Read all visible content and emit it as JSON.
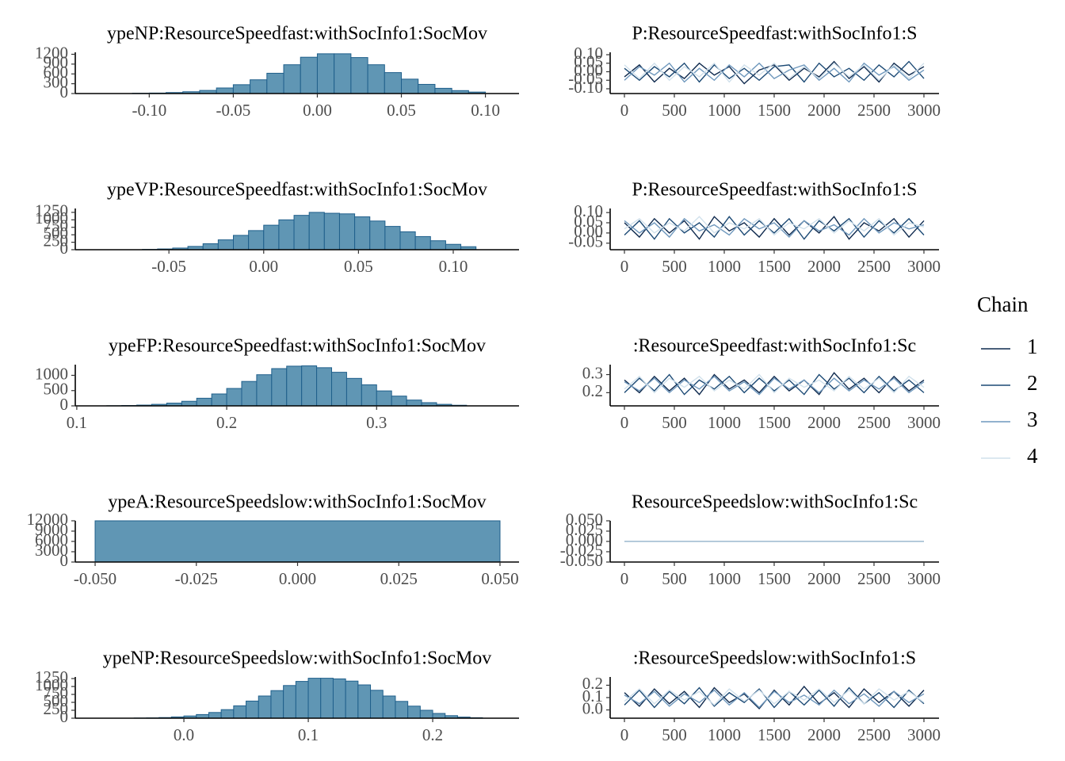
{
  "chart_data": [
    {
      "type": "histogram",
      "title": "ypeNP:ResourceSpeedfast:withSocInfo1:SocMov",
      "color": "#6096b4",
      "edge_color": "#1f5f8b",
      "bins": [
        -0.11,
        -0.1,
        -0.09,
        -0.08,
        -0.07,
        -0.06,
        -0.05,
        -0.04,
        -0.03,
        -0.02,
        -0.01,
        0,
        0.01,
        0.02,
        0.03,
        0.04,
        0.05,
        0.06,
        0.07,
        0.08,
        0.09,
        0.1
      ],
      "values": [
        8,
        15,
        30,
        55,
        95,
        170,
        270,
        420,
        620,
        880,
        1110,
        1215,
        1215,
        1100,
        880,
        640,
        440,
        280,
        160,
        90,
        45
      ],
      "xlim": [
        -0.144,
        0.12
      ],
      "xticks": [
        {
          "value": -0.1,
          "label": "-0.10"
        },
        {
          "value": -0.05,
          "label": "-0.05"
        },
        {
          "value": 0,
          "label": "0.00"
        },
        {
          "value": 0.05,
          "label": "0.05"
        },
        {
          "value": 0.1,
          "label": "0.10"
        }
      ],
      "ylim": [
        0,
        1260
      ],
      "yticks": [
        0,
        300,
        600,
        900,
        1200
      ]
    },
    {
      "type": "line",
      "title": "P:ResourceSpeedfast:withSocInfo1:S",
      "legend_title": "Chain",
      "legend": "right",
      "x": [
        0,
        150,
        300,
        450,
        600,
        750,
        900,
        1050,
        1200,
        1350,
        1500,
        1650,
        1800,
        1950,
        2100,
        2250,
        2400,
        2550,
        2700,
        2850,
        3000
      ],
      "series": [
        {
          "name": "1",
          "color": "#0f2a4e",
          "values": [
            -0.03,
            0.04,
            -0.06,
            0.02,
            -0.04,
            0.05,
            -0.02,
            0.03,
            -0.07,
            0.01,
            0.04,
            -0.05,
            0.02,
            -0.03,
            0.06,
            -0.04,
            0.03,
            -0.06,
            0.05,
            -0.02,
            0.03
          ]
        },
        {
          "name": "2",
          "color": "#1c4a75",
          "values": [
            0.02,
            -0.05,
            0.03,
            -0.03,
            0.05,
            -0.06,
            0.04,
            -0.04,
            0.02,
            -0.05,
            0.03,
            0.04,
            -0.06,
            0.05,
            -0.03,
            0.02,
            -0.05,
            0.04,
            -0.03,
            0.06,
            -0.04
          ]
        },
        {
          "name": "3",
          "color": "#6f98bd",
          "values": [
            -0.05,
            0.03,
            -0.02,
            0.05,
            -0.06,
            0.02,
            -0.05,
            0.04,
            -0.03,
            0.05,
            -0.04,
            0.01,
            0.04,
            -0.05,
            0.02,
            -0.06,
            0.05,
            -0.02,
            0.03,
            -0.05,
            0.01
          ]
        },
        {
          "name": "4",
          "color": "#d1e1ec",
          "values": [
            0.04,
            -0.04,
            0.05,
            -0.05,
            0.03,
            -0.03,
            0.05,
            -0.06,
            0.04,
            -0.02,
            0.05,
            -0.04,
            0.03,
            -0.04,
            0.05,
            -0.03,
            0.04,
            -0.05,
            0.04,
            -0.04,
            0.05
          ]
        }
      ],
      "xlim": [
        -143,
        3151
      ],
      "xticks": [
        0,
        500,
        1000,
        1500,
        2000,
        2500,
        3000
      ],
      "ylim": [
        -0.128,
        0.114
      ],
      "yticks": [
        {
          "value": -0.1,
          "label": "-0.10"
        },
        {
          "value": -0.05,
          "label": "-0.05"
        },
        {
          "value": 0,
          "label": "0.00"
        },
        {
          "value": 0.05,
          "label": "0.05"
        },
        {
          "value": 0.1,
          "label": "0.10"
        }
      ]
    },
    {
      "type": "histogram",
      "title": "ypeVP:ResourceSpeedfast:withSocInfo1:SocMov",
      "color": "#6096b4",
      "edge_color": "#1f5f8b",
      "bins": [
        -0.064,
        -0.056,
        -0.048,
        -0.04,
        -0.032,
        -0.024,
        -0.016,
        -0.008,
        0,
        0.008,
        0.016,
        0.024,
        0.032,
        0.04,
        0.048,
        0.056,
        0.064,
        0.072,
        0.08,
        0.088,
        0.096,
        0.104,
        0.112
      ],
      "values": [
        10,
        25,
        55,
        110,
        200,
        330,
        480,
        640,
        820,
        1000,
        1150,
        1250,
        1220,
        1200,
        1100,
        960,
        780,
        600,
        440,
        300,
        180,
        100
      ],
      "xlim": [
        -0.0994,
        0.1347
      ],
      "xticks": [
        {
          "value": -0.05,
          "label": "-0.05"
        },
        {
          "value": 0,
          "label": "0.00"
        },
        {
          "value": 0.05,
          "label": "0.05"
        },
        {
          "value": 0.1,
          "label": "0.10"
        }
      ],
      "ylim": [
        0,
        1380
      ],
      "yticks": [
        0,
        250,
        500,
        750,
        1000,
        1250
      ]
    },
    {
      "type": "line",
      "title": "P:ResourceSpeedfast:withSocInfo1:S",
      "x": [
        0,
        150,
        300,
        450,
        600,
        750,
        900,
        1050,
        1200,
        1350,
        1500,
        1650,
        1800,
        1950,
        2100,
        2250,
        2400,
        2550,
        2700,
        2850,
        3000
      ],
      "series": [
        {
          "color": "#0f2a4e",
          "values": [
            0.05,
            -0.02,
            0.07,
            0,
            0.06,
            -0.03,
            0.08,
            0.01,
            0.05,
            -0.02,
            0.07,
            -0.01,
            0.06,
            0,
            0.08,
            -0.03,
            0.05,
            0.01,
            0.07,
            -0.02,
            0.06
          ]
        },
        {
          "color": "#1c4a75",
          "values": [
            -0.01,
            0.06,
            -0.03,
            0.07,
            0,
            0.05,
            -0.02,
            0.08,
            -0.01,
            0.06,
            0,
            0.07,
            -0.03,
            0.06,
            0.01,
            0.07,
            -0.02,
            0.06,
            0,
            0.07,
            -0.01
          ]
        },
        {
          "color": "#6f98bd",
          "values": [
            0.06,
            0,
            0.05,
            -0.02,
            0.07,
            0.01,
            0.04,
            -0.01,
            0.07,
            0.02,
            0.05,
            -0.02,
            0.06,
            0.01,
            0.04,
            -0.01,
            0.07,
            0,
            0.05,
            0.02,
            0.04
          ]
        },
        {
          "color": "#d1e1ec",
          "values": [
            0.02,
            0.07,
            0,
            0.05,
            0.01,
            0.08,
            0,
            0.05,
            0.02,
            0.07,
            -0.01,
            0.05,
            0.02,
            0.07,
            0,
            0.06,
            0.01,
            0.07,
            -0.01,
            0.05,
            0.03
          ]
        }
      ],
      "xlim": [
        -143,
        3151
      ],
      "xticks": [
        0,
        500,
        1000,
        1500,
        2000,
        2500,
        3000
      ],
      "ylim": [
        -0.082,
        0.12
      ],
      "yticks": [
        {
          "value": -0.05,
          "label": "-0.05"
        },
        {
          "value": 0,
          "label": "0.00"
        },
        {
          "value": 0.05,
          "label": "0.05"
        },
        {
          "value": 0.1,
          "label": "0.10"
        }
      ]
    },
    {
      "type": "histogram",
      "title": "ypeFP:ResourceSpeedfast:withSocInfo1:SocMov",
      "color": "#6096b4",
      "edge_color": "#1f5f8b",
      "bins": [
        0.12,
        0.13,
        0.14,
        0.15,
        0.16,
        0.17,
        0.18,
        0.19,
        0.2,
        0.21,
        0.22,
        0.23,
        0.24,
        0.25,
        0.26,
        0.27,
        0.28,
        0.29,
        0.3,
        0.31,
        0.32,
        0.33,
        0.34,
        0.35,
        0.36
      ],
      "values": [
        5,
        12,
        25,
        50,
        90,
        150,
        250,
        390,
        570,
        800,
        1020,
        1220,
        1300,
        1310,
        1250,
        1100,
        900,
        690,
        490,
        320,
        190,
        105,
        50,
        20
      ],
      "xlim": [
        0.099,
        0.395
      ],
      "xticks": [
        0.1,
        0.2,
        0.3
      ],
      "ylim": [
        0,
        1350
      ],
      "yticks": [
        0,
        500,
        1000
      ]
    },
    {
      "type": "line",
      "title": ":ResourceSpeedfast:withSocInfo1:Sc",
      "x": [
        0,
        150,
        300,
        450,
        600,
        750,
        900,
        1050,
        1200,
        1350,
        1500,
        1650,
        1800,
        1950,
        2100,
        2250,
        2400,
        2550,
        2700,
        2850,
        3000
      ],
      "series": [
        {
          "color": "#0f2a4e",
          "values": [
            0.27,
            0.2,
            0.29,
            0.21,
            0.28,
            0.19,
            0.3,
            0.22,
            0.27,
            0.2,
            0.29,
            0.21,
            0.27,
            0.19,
            0.31,
            0.22,
            0.28,
            0.2,
            0.29,
            0.21,
            0.27
          ]
        },
        {
          "color": "#1c4a75",
          "values": [
            0.2,
            0.28,
            0.21,
            0.3,
            0.19,
            0.27,
            0.22,
            0.29,
            0.2,
            0.28,
            0.21,
            0.27,
            0.19,
            0.3,
            0.22,
            0.28,
            0.2,
            0.29,
            0.21,
            0.27,
            0.2
          ]
        },
        {
          "color": "#6f98bd",
          "values": [
            0.26,
            0.21,
            0.28,
            0.2,
            0.27,
            0.22,
            0.29,
            0.21,
            0.26,
            0.19,
            0.28,
            0.22,
            0.27,
            0.2,
            0.28,
            0.21,
            0.27,
            0.22,
            0.28,
            0.2,
            0.26
          ]
        },
        {
          "color": "#d1e1ec",
          "values": [
            0.22,
            0.29,
            0.2,
            0.28,
            0.23,
            0.29,
            0.21,
            0.27,
            0.22,
            0.3,
            0.2,
            0.28,
            0.23,
            0.27,
            0.21,
            0.29,
            0.22,
            0.28,
            0.2,
            0.29,
            0.23
          ]
        }
      ],
      "xlim": [
        -143,
        3151
      ],
      "xticks": [
        0,
        500,
        1000,
        1500,
        2000,
        2500,
        3000
      ],
      "ylim": [
        0.127,
        0.355
      ],
      "yticks": [
        0.2,
        0.3
      ]
    },
    {
      "type": "histogram",
      "title": "ypeA:ResourceSpeedslow:withSocInfo1:SocMov",
      "color": "#6096b4",
      "edge_color": "#1f5f8b",
      "bins": [
        -0.05,
        0.05
      ],
      "values": [
        12000
      ],
      "xlim": [
        -0.0549,
        0.0547
      ],
      "xticks": [
        {
          "value": -0.05,
          "label": "-0.050"
        },
        {
          "value": -0.025,
          "label": "-0.025"
        },
        {
          "value": 0,
          "label": "0.000"
        },
        {
          "value": 0.025,
          "label": "0.025"
        },
        {
          "value": 0.05,
          "label": "0.050"
        }
      ],
      "ylim": [
        0,
        12000
      ],
      "yticks": [
        0,
        3000,
        6000,
        9000,
        12000
      ]
    },
    {
      "type": "line",
      "title": "ResourceSpeedslow:withSocInfo1:Sc",
      "x": [
        0,
        150,
        300,
        450,
        600,
        750,
        900,
        1050,
        1200,
        1350,
        1500,
        1650,
        1800,
        1950,
        2100,
        2250,
        2400,
        2550,
        2700,
        2850,
        3000
      ],
      "series": [
        {
          "color": "#0f2a4e",
          "values": [
            0,
            0,
            0,
            0,
            0,
            0,
            0,
            0,
            0,
            0,
            0,
            0,
            0,
            0,
            0,
            0,
            0,
            0,
            0,
            0,
            0
          ]
        },
        {
          "color": "#1c4a75",
          "values": [
            0,
            0,
            0,
            0,
            0,
            0,
            0,
            0,
            0,
            0,
            0,
            0,
            0,
            0,
            0,
            0,
            0,
            0,
            0,
            0,
            0
          ]
        },
        {
          "color": "#6f98bd",
          "values": [
            0,
            0,
            0,
            0,
            0,
            0,
            0,
            0,
            0,
            0,
            0,
            0,
            0,
            0,
            0,
            0,
            0,
            0,
            0,
            0,
            0
          ]
        },
        {
          "color": "#d1e1ec",
          "values": [
            0,
            0,
            0,
            0,
            0,
            0,
            0,
            0,
            0,
            0,
            0,
            0,
            0,
            0,
            0,
            0,
            0,
            0,
            0,
            0,
            0
          ]
        }
      ],
      "xlim": [
        -143,
        3151
      ],
      "xticks": [
        0,
        500,
        1000,
        1500,
        2000,
        2500,
        3000
      ],
      "ylim": [
        -0.05,
        0.05
      ],
      "yticks": [
        {
          "value": -0.05,
          "label": "-0.050"
        },
        {
          "value": -0.025,
          "label": "-0.025"
        },
        {
          "value": 0,
          "label": "0.000"
        },
        {
          "value": 0.025,
          "label": "0.025"
        },
        {
          "value": 0.05,
          "label": "0.050"
        }
      ]
    },
    {
      "type": "histogram",
      "title": "ypeNP:ResourceSpeedslow:withSocInfo1:SocMov",
      "color": "#6096b4",
      "edge_color": "#1f5f8b",
      "bins": [
        -0.04,
        -0.03,
        -0.02,
        -0.01,
        0,
        0.01,
        0.02,
        0.03,
        0.04,
        0.05,
        0.06,
        0.07,
        0.08,
        0.09,
        0.1,
        0.11,
        0.12,
        0.13,
        0.14,
        0.15,
        0.16,
        0.17,
        0.18,
        0.19,
        0.2,
        0.21,
        0.22,
        0.23,
        0.24
      ],
      "values": [
        5,
        10,
        20,
        40,
        70,
        115,
        180,
        270,
        390,
        540,
        700,
        870,
        1030,
        1160,
        1260,
        1260,
        1240,
        1170,
        1050,
        880,
        700,
        530,
        380,
        250,
        150,
        80,
        35,
        15
      ],
      "xlim": [
        -0.0873,
        0.2694
      ],
      "xticks": [
        {
          "value": 0,
          "label": "0.0"
        },
        0.1,
        0.2
      ],
      "ylim": [
        0,
        1300
      ],
      "yticks": [
        0,
        250,
        500,
        750,
        1000,
        1250
      ]
    },
    {
      "type": "line",
      "title": ":ResourceSpeedslow:withSocInfo1:S",
      "x": [
        0,
        150,
        300,
        450,
        600,
        750,
        900,
        1050,
        1200,
        1350,
        1500,
        1650,
        1800,
        1950,
        2100,
        2250,
        2400,
        2550,
        2700,
        2850,
        3000
      ],
      "series": [
        {
          "color": "#0f2a4e",
          "values": [
            0.14,
            0.03,
            0.17,
            0.05,
            0.15,
            0.02,
            0.18,
            0.06,
            0.13,
            0.01,
            0.16,
            0.04,
            0.19,
            0.05,
            0.14,
            0.02,
            0.17,
            0.06,
            0.15,
            0.03,
            0.16
          ]
        },
        {
          "color": "#1c4a75",
          "values": [
            0.04,
            0.16,
            0.02,
            0.15,
            0.05,
            0.18,
            0.03,
            0.14,
            0.06,
            0.17,
            0.02,
            0.15,
            0.04,
            0.16,
            0.03,
            0.18,
            0.05,
            0.14,
            0.02,
            0.16,
            0.05
          ]
        },
        {
          "color": "#6f98bd",
          "values": [
            0.12,
            0.05,
            0.15,
            0.03,
            0.13,
            0.06,
            0.16,
            0.04,
            0.14,
            0.02,
            0.15,
            0.06,
            0.12,
            0.04,
            0.16,
            0.05,
            0.13,
            0.03,
            0.15,
            0.06,
            0.13
          ]
        },
        {
          "color": "#d1e1ec",
          "values": [
            0.07,
            0.17,
            0.05,
            0.16,
            0.08,
            0.15,
            0.04,
            0.17,
            0.07,
            0.16,
            0.05,
            0.15,
            0.08,
            0.17,
            0.06,
            0.16,
            0.05,
            0.17,
            0.08,
            0.15,
            0.06
          ]
        }
      ],
      "xlim": [
        -143,
        3151
      ],
      "xticks": [
        0,
        500,
        1000,
        1500,
        2000,
        2500,
        3000
      ],
      "ylim": [
        -0.067,
        0.267
      ],
      "yticks": [
        {
          "value": 0,
          "label": "0.0"
        },
        0.1,
        0.2
      ]
    }
  ]
}
